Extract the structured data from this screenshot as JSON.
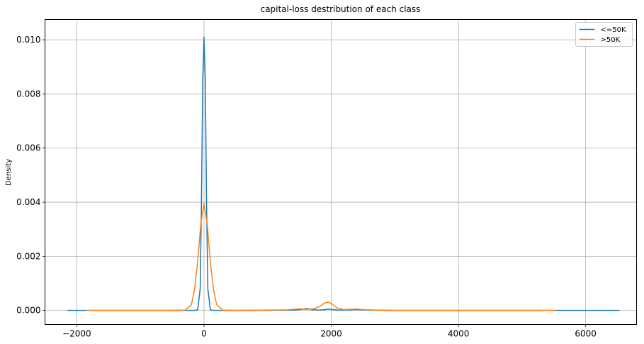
{
  "chart_data": {
    "type": "line",
    "title": "capital-loss destribution of each class",
    "xlabel": "",
    "ylabel": "Density",
    "xlim": [
      -2500,
      6800
    ],
    "ylim": [
      -0.00052,
      0.01075
    ],
    "xticks": [
      -2000,
      0,
      2000,
      4000,
      6000
    ],
    "xtick_labels": [
      "−2000",
      "0",
      "2000",
      "4000",
      "6000"
    ],
    "yticks": [
      0.0,
      0.002,
      0.004,
      0.006,
      0.008,
      0.01
    ],
    "ytick_labels": [
      "0.000",
      "0.002",
      "0.004",
      "0.006",
      "0.008",
      "0.010"
    ],
    "grid": true,
    "legend_position": "top-right",
    "series": [
      {
        "name": "<=50K",
        "color": "#1f77b4",
        "x": [
          -2150,
          -500,
          -150,
          -100,
          -60,
          -40,
          -20,
          0,
          20,
          40,
          60,
          100,
          150,
          500,
          1400,
          1550,
          1600,
          1650,
          1700,
          1800,
          1900,
          1950,
          2000,
          2100,
          2300,
          2400,
          2500,
          3000,
          6530
        ],
        "y": [
          0.0,
          0.0,
          0.0,
          2e-05,
          0.0008,
          0.004,
          0.0085,
          0.0101,
          0.0085,
          0.004,
          0.0008,
          2e-05,
          0.0,
          0.0,
          1e-05,
          4e-05,
          7e-05,
          6e-05,
          3e-05,
          1e-05,
          3e-05,
          5e-05,
          4e-05,
          1e-05,
          2e-05,
          3e-05,
          2e-05,
          0.0,
          0.0
        ]
      },
      {
        "name": ">50K",
        "color": "#ff7f0e",
        "x": [
          -1850,
          -500,
          -300,
          -200,
          -150,
          -100,
          -50,
          0,
          50,
          100,
          150,
          200,
          300,
          500,
          1300,
          1500,
          1600,
          1700,
          1800,
          1850,
          1900,
          1950,
          2000,
          2050,
          2100,
          2200,
          2300,
          2400,
          2500,
          2700,
          3000,
          5520
        ],
        "y": [
          0.0,
          0.0,
          1e-05,
          0.0002,
          0.00075,
          0.0018,
          0.0032,
          0.00395,
          0.0032,
          0.0018,
          0.00075,
          0.0002,
          1e-05,
          0.0,
          2e-05,
          6e-05,
          4e-05,
          5e-05,
          0.00012,
          0.0002,
          0.00028,
          0.0003,
          0.00026,
          0.00016,
          8e-05,
          3e-05,
          4e-05,
          5e-05,
          3e-05,
          1e-05,
          0.0,
          0.0
        ]
      }
    ]
  }
}
